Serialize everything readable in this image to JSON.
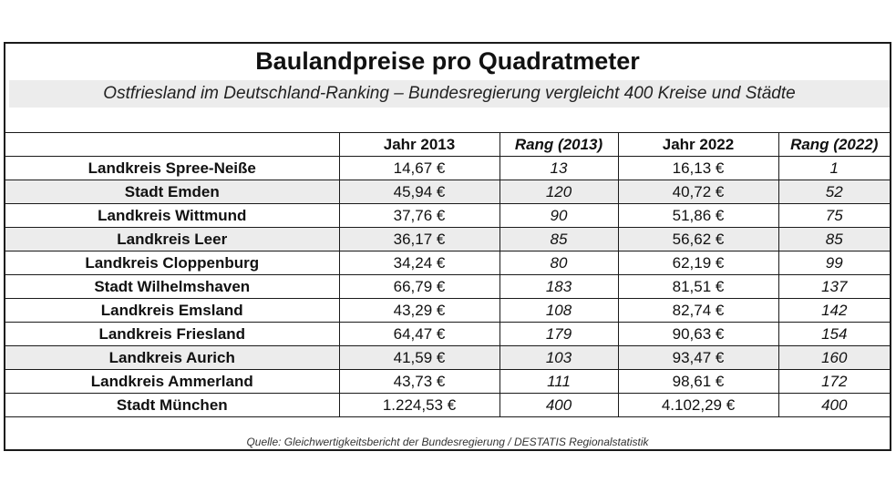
{
  "chart_data": {
    "type": "table",
    "title": "Baulandpreise pro Quadratmeter",
    "subtitle": "Ostfriesland im Deutschland-Ranking – Bundesregierung vergleicht 400 Kreise und Städte",
    "columns": [
      "",
      "Jahr 2013",
      "Rang (2013)",
      "Jahr 2022",
      "Rang (2022)"
    ],
    "rows": [
      {
        "name": "Landkreis Spree-Neiße",
        "price_2013": "14,67 €",
        "rank_2013": "13",
        "price_2022": "16,13 €",
        "rank_2022": "1"
      },
      {
        "name": "Stadt Emden",
        "price_2013": "45,94 €",
        "rank_2013": "120",
        "price_2022": "40,72 €",
        "rank_2022": "52"
      },
      {
        "name": "Landkreis Wittmund",
        "price_2013": "37,76 €",
        "rank_2013": "90",
        "price_2022": "51,86 €",
        "rank_2022": "75"
      },
      {
        "name": "Landkreis Leer",
        "price_2013": "36,17 €",
        "rank_2013": "85",
        "price_2022": "56,62 €",
        "rank_2022": "85"
      },
      {
        "name": "Landkreis Cloppenburg",
        "price_2013": "34,24 €",
        "rank_2013": "80",
        "price_2022": "62,19 €",
        "rank_2022": "99"
      },
      {
        "name": "Stadt Wilhelmshaven",
        "price_2013": "66,79 €",
        "rank_2013": "183",
        "price_2022": "81,51 €",
        "rank_2022": "137"
      },
      {
        "name": "Landkreis Emsland",
        "price_2013": "43,29 €",
        "rank_2013": "108",
        "price_2022": "82,74 €",
        "rank_2022": "142"
      },
      {
        "name": "Landkreis Friesland",
        "price_2013": "64,47 €",
        "rank_2013": "179",
        "price_2022": "90,63 €",
        "rank_2022": "154"
      },
      {
        "name": "Landkreis Aurich",
        "price_2013": "41,59 €",
        "rank_2013": "103",
        "price_2022": "93,47 €",
        "rank_2022": "160"
      },
      {
        "name": "Landkreis Ammerland",
        "price_2013": "43,73 €",
        "rank_2013": "111",
        "price_2022": "98,61 €",
        "rank_2022": "172"
      },
      {
        "name": "Stadt München",
        "price_2013": "1.224,53 €",
        "rank_2013": "400",
        "price_2022": "4.102,29 €",
        "rank_2022": "400"
      }
    ],
    "shaded_rows": [
      1,
      3,
      8
    ],
    "source": "Quelle: Gleichwertigkeitsbericht der Bundesregierung / DESTATIS Regionalstatistik",
    "colors": {
      "border": "#1a1a1a",
      "shade": "#ececec",
      "text": "#111111"
    }
  }
}
